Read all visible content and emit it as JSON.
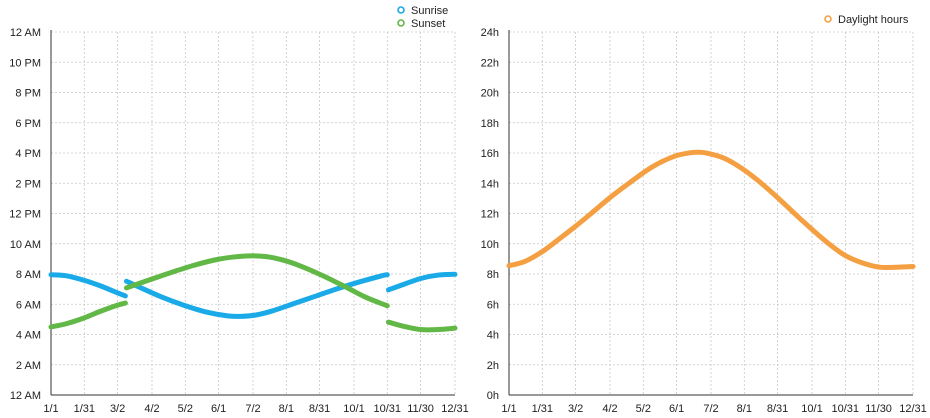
{
  "colors": {
    "sunrise": "#1aaae8",
    "sunset": "#62b846",
    "daylight": "#f4a042"
  },
  "chart_data": [
    {
      "type": "line",
      "title": "",
      "xlabel": "",
      "ylabel": "",
      "x_tick_labels": [
        "1/1",
        "1/31",
        "3/2",
        "4/2",
        "5/2",
        "6/1",
        "7/2",
        "8/1",
        "8/31",
        "10/1",
        "10/31",
        "11/30",
        "12/31"
      ],
      "x_tick_days": [
        1,
        31,
        61,
        92,
        122,
        152,
        183,
        213,
        243,
        274,
        304,
        334,
        365
      ],
      "y_tick_labels": [
        "12 AM",
        "2 AM",
        "4 AM",
        "6 AM",
        "8 AM",
        "10 AM",
        "12 PM",
        "2 PM",
        "4 PM",
        "6 PM",
        "8 PM",
        "10 PM",
        "12 AM"
      ],
      "ylim": [
        0,
        24
      ],
      "grid": true,
      "legend": "top-right",
      "series": [
        {
          "name": "Sunrise",
          "color": "#1aaae8",
          "segments": [
            {
              "x": [
                1,
                15,
                31,
                45,
                60,
                68
              ],
              "y": [
                7.95,
                7.88,
                7.58,
                7.23,
                6.78,
                6.55
              ]
            },
            {
              "x": [
                69,
                80,
                100,
                120,
                140,
                160,
                172,
                185,
                200,
                220,
                240,
                260,
                280,
                300,
                304
              ],
              "y": [
                7.52,
                7.15,
                6.5,
                5.95,
                5.5,
                5.23,
                5.2,
                5.28,
                5.55,
                6.05,
                6.55,
                7.05,
                7.5,
                7.9,
                7.95
              ]
            },
            {
              "x": [
                305,
                320,
                335,
                350,
                365
              ],
              "y": [
                6.95,
                7.35,
                7.72,
                7.93,
                7.98
              ]
            }
          ]
        },
        {
          "name": "Sunset",
          "color": "#62b846",
          "segments": [
            {
              "x": [
                1,
                15,
                31,
                45,
                60,
                68
              ],
              "y": [
                4.5,
                4.72,
                5.1,
                5.52,
                5.92,
                6.08
              ]
            },
            {
              "x": [
                69,
                90,
                110,
                130,
                150,
                165,
                180,
                195,
                210,
                225,
                245,
                265,
                285,
                304
              ],
              "y": [
                7.08,
                7.62,
                8.12,
                8.58,
                8.95,
                9.12,
                9.2,
                9.15,
                8.92,
                8.55,
                7.92,
                7.2,
                6.45,
                5.9
              ]
            },
            {
              "x": [
                305,
                320,
                335,
                350,
                365
              ],
              "y": [
                4.82,
                4.52,
                4.32,
                4.33,
                4.42
              ]
            }
          ]
        }
      ]
    },
    {
      "type": "line",
      "title": "",
      "xlabel": "",
      "ylabel": "",
      "x_tick_labels": [
        "1/1",
        "1/31",
        "3/2",
        "4/2",
        "5/2",
        "6/1",
        "7/2",
        "8/1",
        "8/31",
        "10/1",
        "10/31",
        "11/30",
        "12/31"
      ],
      "x_tick_days": [
        1,
        31,
        61,
        92,
        122,
        152,
        183,
        213,
        243,
        274,
        304,
        334,
        365
      ],
      "y_tick_labels": [
        "0h",
        "2h",
        "4h",
        "6h",
        "8h",
        "10h",
        "12h",
        "14h",
        "16h",
        "18h",
        "20h",
        "22h",
        "24h"
      ],
      "ylim": [
        0,
        24
      ],
      "grid": true,
      "legend": "top-right",
      "series": [
        {
          "name": "Daylight hours",
          "color": "#f4a042",
          "segments": [
            {
              "x": [
                1,
                15,
                31,
                45,
                60,
                75,
                92,
                110,
                130,
                150,
                165,
                172,
                180,
                195,
                210,
                225,
                243,
                260,
                274,
                290,
                304,
                320,
                335,
                350,
                365
              ],
              "y": [
                8.55,
                8.82,
                9.48,
                10.25,
                11.1,
                12.0,
                13.05,
                14.05,
                15.08,
                15.78,
                16.02,
                16.05,
                15.98,
                15.65,
                15.02,
                14.2,
                13.05,
                11.88,
                10.95,
                9.95,
                9.22,
                8.72,
                8.45,
                8.45,
                8.5
              ]
            }
          ]
        }
      ]
    }
  ]
}
